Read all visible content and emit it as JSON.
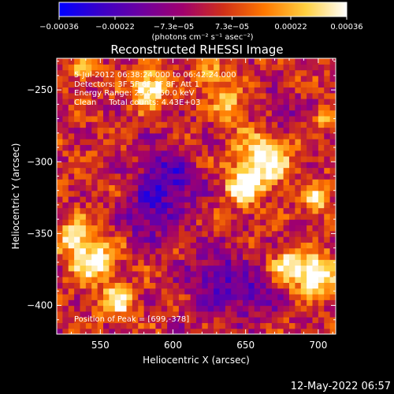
{
  "chart_data": {
    "type": "heatmap",
    "title": "Reconstructed RHESSI Image",
    "xlabel": "Heliocentric X (arcsec)",
    "ylabel": "Heliocentric Y (arcsec)",
    "xlim": [
      520,
      712
    ],
    "ylim": [
      -420,
      -228
    ],
    "x_ticks": [
      550,
      600,
      650,
      700
    ],
    "x_tick_labels": [
      "550",
      "600",
      "650",
      "700"
    ],
    "y_ticks": [
      -250,
      -300,
      -350,
      -400
    ],
    "y_tick_labels": [
      "−250",
      "−300",
      "−350",
      "−400"
    ],
    "grid": false,
    "colorbar": {
      "range": [
        -0.00036,
        0.00036
      ],
      "ticks": [
        -0.00036,
        -0.00022,
        -7.3e-05,
        7.3e-05,
        0.00022,
        0.00036
      ],
      "tick_labels": [
        "−0.00036",
        "−0.00022",
        "−7.3e−05",
        "7.3e−05",
        "0.00022",
        "0.00036"
      ],
      "units": "(photons cm⁻² s⁻¹ asec⁻²)",
      "stops": [
        "#0000ff",
        "#3a00c8",
        "#6e00a0",
        "#a0006e",
        "#d03018",
        "#ff7800",
        "#ffd040",
        "#ffffff"
      ]
    },
    "annotations": [
      "5-Jul-2012 06:38:24.000 to 06:42:24.000",
      "Detectors: 3F 5F 6F 7F 8F, Att 1",
      "Energy Range: 25.0 - 50.0 keV",
      "Clean     Total counts: 4.43E+03",
      "Position of Peak = [699,-378]"
    ],
    "peak": [
      699,
      -378
    ],
    "emission_sources": [
      {
        "x": 583,
        "y": -248,
        "sigma": 9,
        "amp": 1.05
      },
      {
        "x": 540,
        "y": -235,
        "sigma": 7,
        "amp": 0.7
      },
      {
        "x": 662,
        "y": -298,
        "sigma": 13,
        "amp": 1.0
      },
      {
        "x": 648,
        "y": -318,
        "sigma": 9,
        "amp": 0.8
      },
      {
        "x": 698,
        "y": -325,
        "sigma": 7,
        "amp": 0.75
      },
      {
        "x": 699,
        "y": -378,
        "sigma": 10,
        "amp": 1.15
      },
      {
        "x": 680,
        "y": -372,
        "sigma": 8,
        "amp": 0.8
      },
      {
        "x": 545,
        "y": -368,
        "sigma": 11,
        "amp": 0.95
      },
      {
        "x": 532,
        "y": -350,
        "sigma": 8,
        "amp": 0.75
      },
      {
        "x": 562,
        "y": -398,
        "sigma": 8,
        "amp": 0.8
      },
      {
        "x": 638,
        "y": -260,
        "sigma": 8,
        "amp": 0.6
      },
      {
        "x": 627,
        "y": -240,
        "sigma": 7,
        "amp": 0.55
      },
      {
        "x": 612,
        "y": -300,
        "sigma": 7,
        "amp": 0.35
      },
      {
        "x": 705,
        "y": -270,
        "sigma": 6,
        "amp": 0.5
      }
    ],
    "negative_regions": [
      {
        "x": 598,
        "y": -312,
        "sigma": 16,
        "amp": 0.75
      },
      {
        "x": 582,
        "y": -340,
        "sigma": 11,
        "amp": 0.55
      },
      {
        "x": 632,
        "y": -382,
        "sigma": 16,
        "amp": 0.6
      },
      {
        "x": 658,
        "y": -395,
        "sigma": 10,
        "amp": 0.45
      },
      {
        "x": 676,
        "y": -265,
        "sigma": 9,
        "amp": 0.4
      }
    ],
    "pixel_size_arcsec": 4
  },
  "footer": {
    "timestamp": "12-May-2022 06:57"
  }
}
